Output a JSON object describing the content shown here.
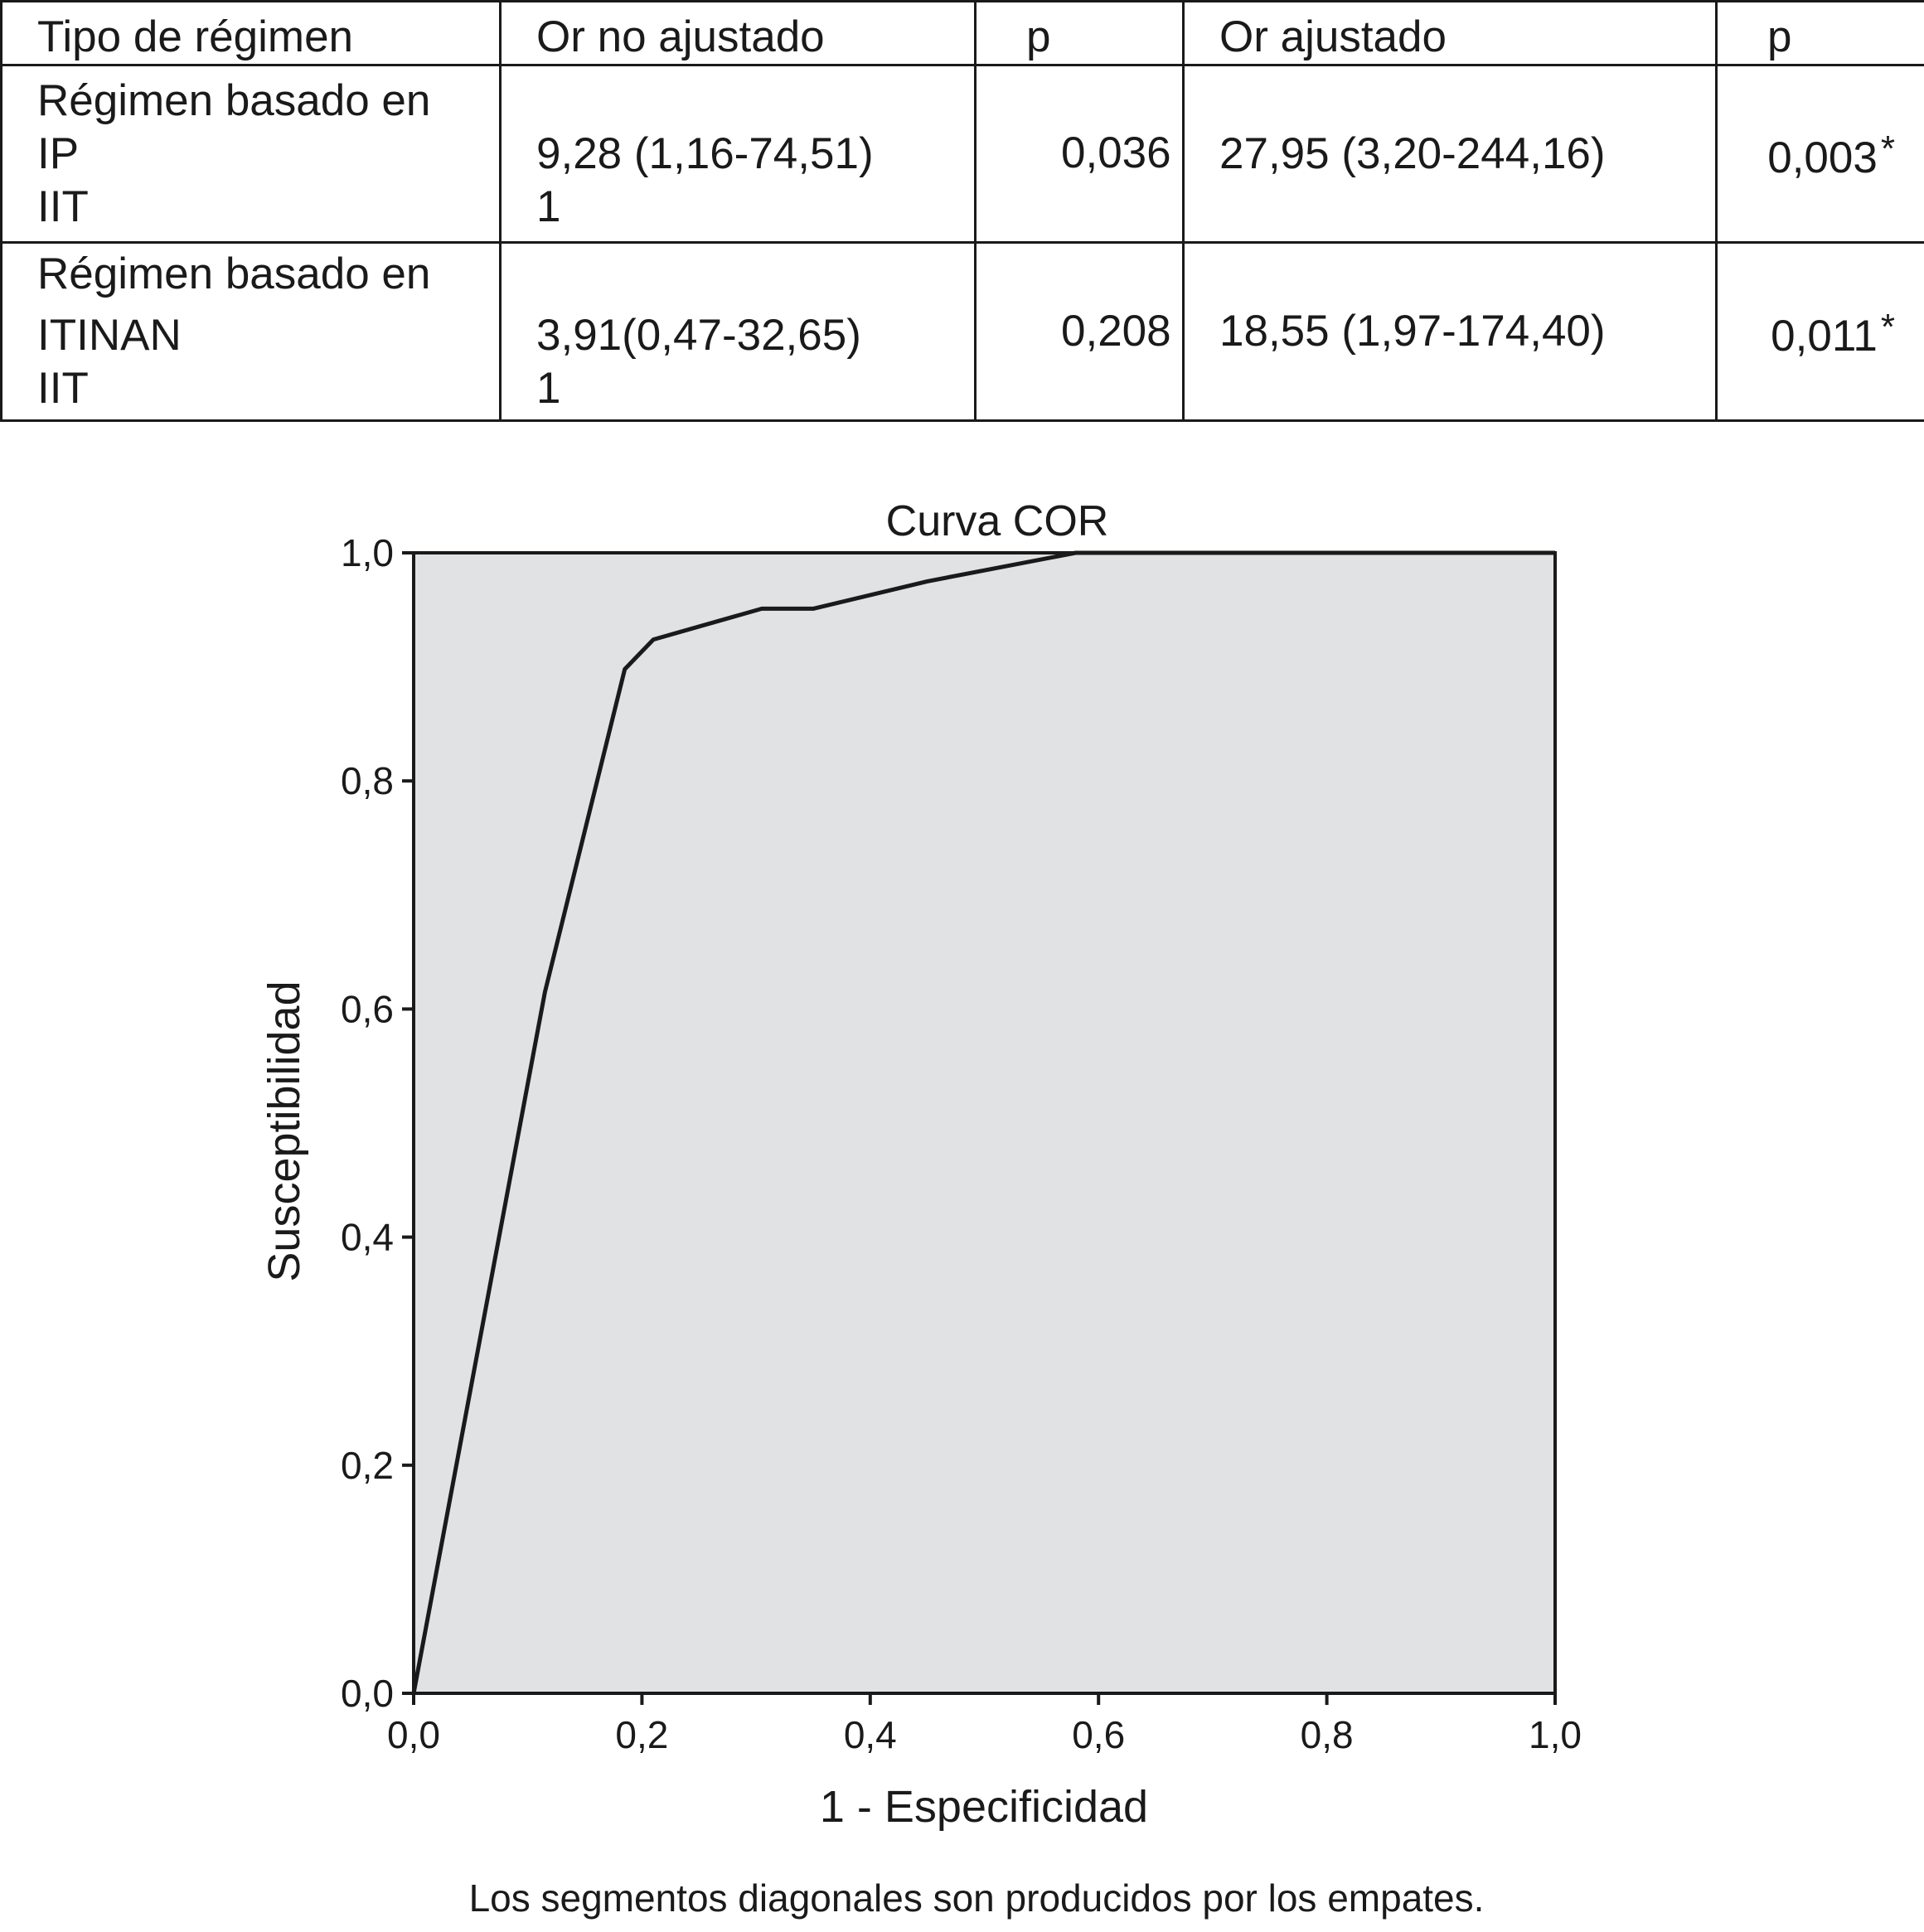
{
  "table": {
    "headers": [
      "Tipo de régimen",
      "Or no ajustado",
      "p",
      "Or ajustado",
      "p"
    ],
    "rows": [
      {
        "label_lines": [
          "Régimen basado en",
          "IP",
          "IIT"
        ],
        "or_unadjusted": "9,28 (1,16-74,51)",
        "or_unadjusted_ref": "1",
        "p_unadjusted": "0,036",
        "or_adjusted": "27,95 (3,20-244,16)",
        "p_adjusted": "0,003",
        "p_adjusted_mark": "*"
      },
      {
        "label_lines": [
          "Régimen basado en",
          "ITINAN",
          "IIT"
        ],
        "or_unadjusted": "3,91(0,47-32,65)",
        "or_unadjusted_ref": "1",
        "p_unadjusted": "0,208",
        "or_adjusted": "18,55 (1,97-174,40)",
        "p_adjusted": "0,011",
        "p_adjusted_mark": "*"
      }
    ]
  },
  "chart_data": {
    "type": "line",
    "title": "Curva COR",
    "xlabel": "1 - Especificidad",
    "ylabel": "Susceptibilidad",
    "xlim": [
      0,
      1
    ],
    "ylim": [
      0,
      1
    ],
    "x_ticks": [
      "0,0",
      "0,2",
      "0,4",
      "0,6",
      "0,8",
      "1,0"
    ],
    "y_ticks": [
      "0,0",
      "0,2",
      "0,4",
      "0,6",
      "0,8",
      "1,0"
    ],
    "x": [
      0.0,
      0.115,
      0.185,
      0.21,
      0.305,
      0.35,
      0.45,
      0.58,
      1.0
    ],
    "y": [
      0.0,
      0.615,
      0.898,
      0.924,
      0.951,
      0.951,
      0.975,
      1.0,
      1.0
    ],
    "plot_background": "#e1e2e4",
    "line_color": "#1a1a1a",
    "grid": false,
    "footnote": "Los segmentos diagonales son producidos por los empates."
  }
}
